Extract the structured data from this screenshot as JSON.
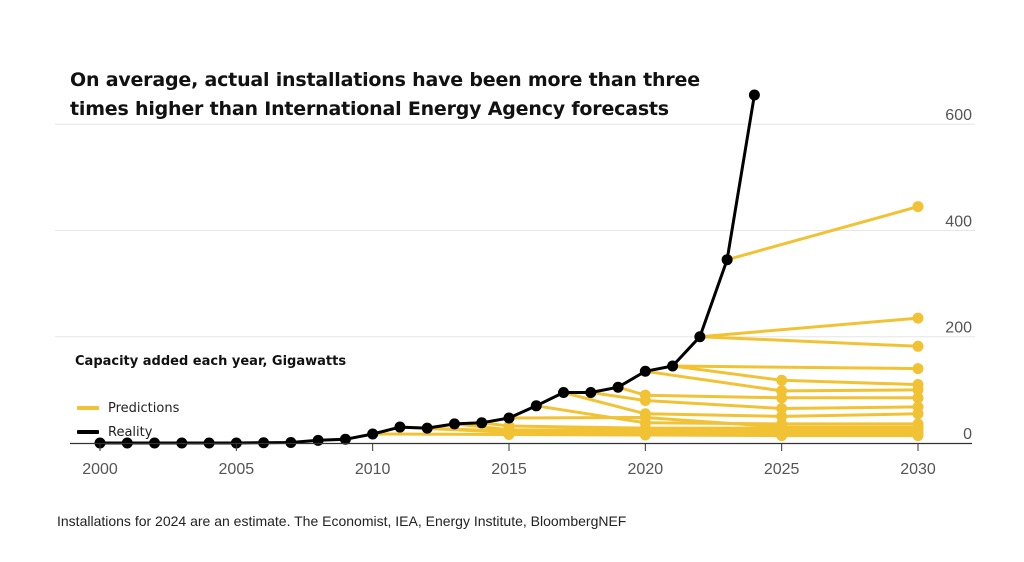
{
  "title": "On average, actual installations have been more than three times higher than International Energy Agency forecasts",
  "source_note": "Installations for 2024 are an estimate. The Economist, IEA, Energy Institute, BloombergNEF",
  "colors": {
    "predictions": "#f2c235",
    "reality": "#000000",
    "grid": "#e6e6e6",
    "axis": "#333333",
    "tick_text": "#555555"
  },
  "chart_data": {
    "type": "line",
    "title": "",
    "subtitle": "Capacity added each year, Gigawatts",
    "xlabel": "",
    "ylabel": "Capacity added each year, Gigawatts",
    "xlim": [
      2000,
      2030
    ],
    "ylim": [
      0,
      650
    ],
    "x_ticks": [
      "2000",
      "2005",
      "2010",
      "2015",
      "2020",
      "2025",
      "2030"
    ],
    "y_ticks": [
      "0",
      "200",
      "400",
      "600"
    ],
    "grid": true,
    "legend": {
      "position": "lower-left",
      "entries": [
        {
          "label": "Predictions",
          "series": "Predictions"
        },
        {
          "label": "Reality",
          "series": "Reality"
        }
      ]
    },
    "series": [
      {
        "name": "Reality",
        "x": [
          2000,
          2001,
          2002,
          2003,
          2004,
          2005,
          2006,
          2007,
          2008,
          2009,
          2010,
          2011,
          2012,
          2013,
          2014,
          2015,
          2016,
          2017,
          2018,
          2019,
          2020,
          2021,
          2022,
          2023,
          2024
        ],
        "y": [
          0,
          0,
          0,
          0,
          0,
          0,
          0.5,
          1,
          5,
          7,
          17,
          30,
          28,
          36,
          38,
          47,
          70,
          95,
          95,
          105,
          135,
          145,
          200,
          345,
          655
        ]
      },
      {
        "name": "Predictions",
        "forecasts": [
          {
            "x": [
              2010,
              2015,
              2020,
              2025,
              2030
            ],
            "y": [
              17,
              16,
              15,
              14,
              14
            ]
          },
          {
            "x": [
              2011,
              2015,
              2020,
              2025,
              2030
            ],
            "y": [
              30,
              20,
              18,
              17,
              17
            ]
          },
          {
            "x": [
              2012,
              2015,
              2020,
              2025,
              2030
            ],
            "y": [
              28,
              22,
              20,
              20,
              20
            ]
          },
          {
            "x": [
              2013,
              2015,
              2020,
              2025,
              2030
            ],
            "y": [
              36,
              25,
              24,
              24,
              24
            ]
          },
          {
            "x": [
              2014,
              2015,
              2020,
              2025,
              2030
            ],
            "y": [
              38,
              32,
              28,
              28,
              28
            ]
          },
          {
            "x": [
              2015,
              2020,
              2025,
              2030
            ],
            "y": [
              47,
              48,
              30,
              30
            ]
          },
          {
            "x": [
              2016,
              2020,
              2025,
              2030
            ],
            "y": [
              70,
              38,
              36,
              36
            ]
          },
          {
            "x": [
              2017,
              2020,
              2025,
              2030
            ],
            "y": [
              95,
              55,
              50,
              55
            ]
          },
          {
            "x": [
              2018,
              2020,
              2025,
              2030
            ],
            "y": [
              95,
              80,
              65,
              68
            ]
          },
          {
            "x": [
              2019,
              2020,
              2025,
              2030
            ],
            "y": [
              105,
              90,
              85,
              85
            ]
          },
          {
            "x": [
              2020,
              2025,
              2030
            ],
            "y": [
              135,
              98,
              100
            ]
          },
          {
            "x": [
              2021,
              2025,
              2030
            ],
            "y": [
              145,
              118,
              110
            ]
          },
          {
            "x": [
              2021,
              2030
            ],
            "y": [
              145,
              140
            ]
          },
          {
            "x": [
              2022,
              2030
            ],
            "y": [
              200,
              182
            ]
          },
          {
            "x": [
              2022,
              2030
            ],
            "y": [
              200,
              235
            ]
          },
          {
            "x": [
              2023,
              2030
            ],
            "y": [
              345,
              445
            ]
          }
        ]
      }
    ]
  }
}
